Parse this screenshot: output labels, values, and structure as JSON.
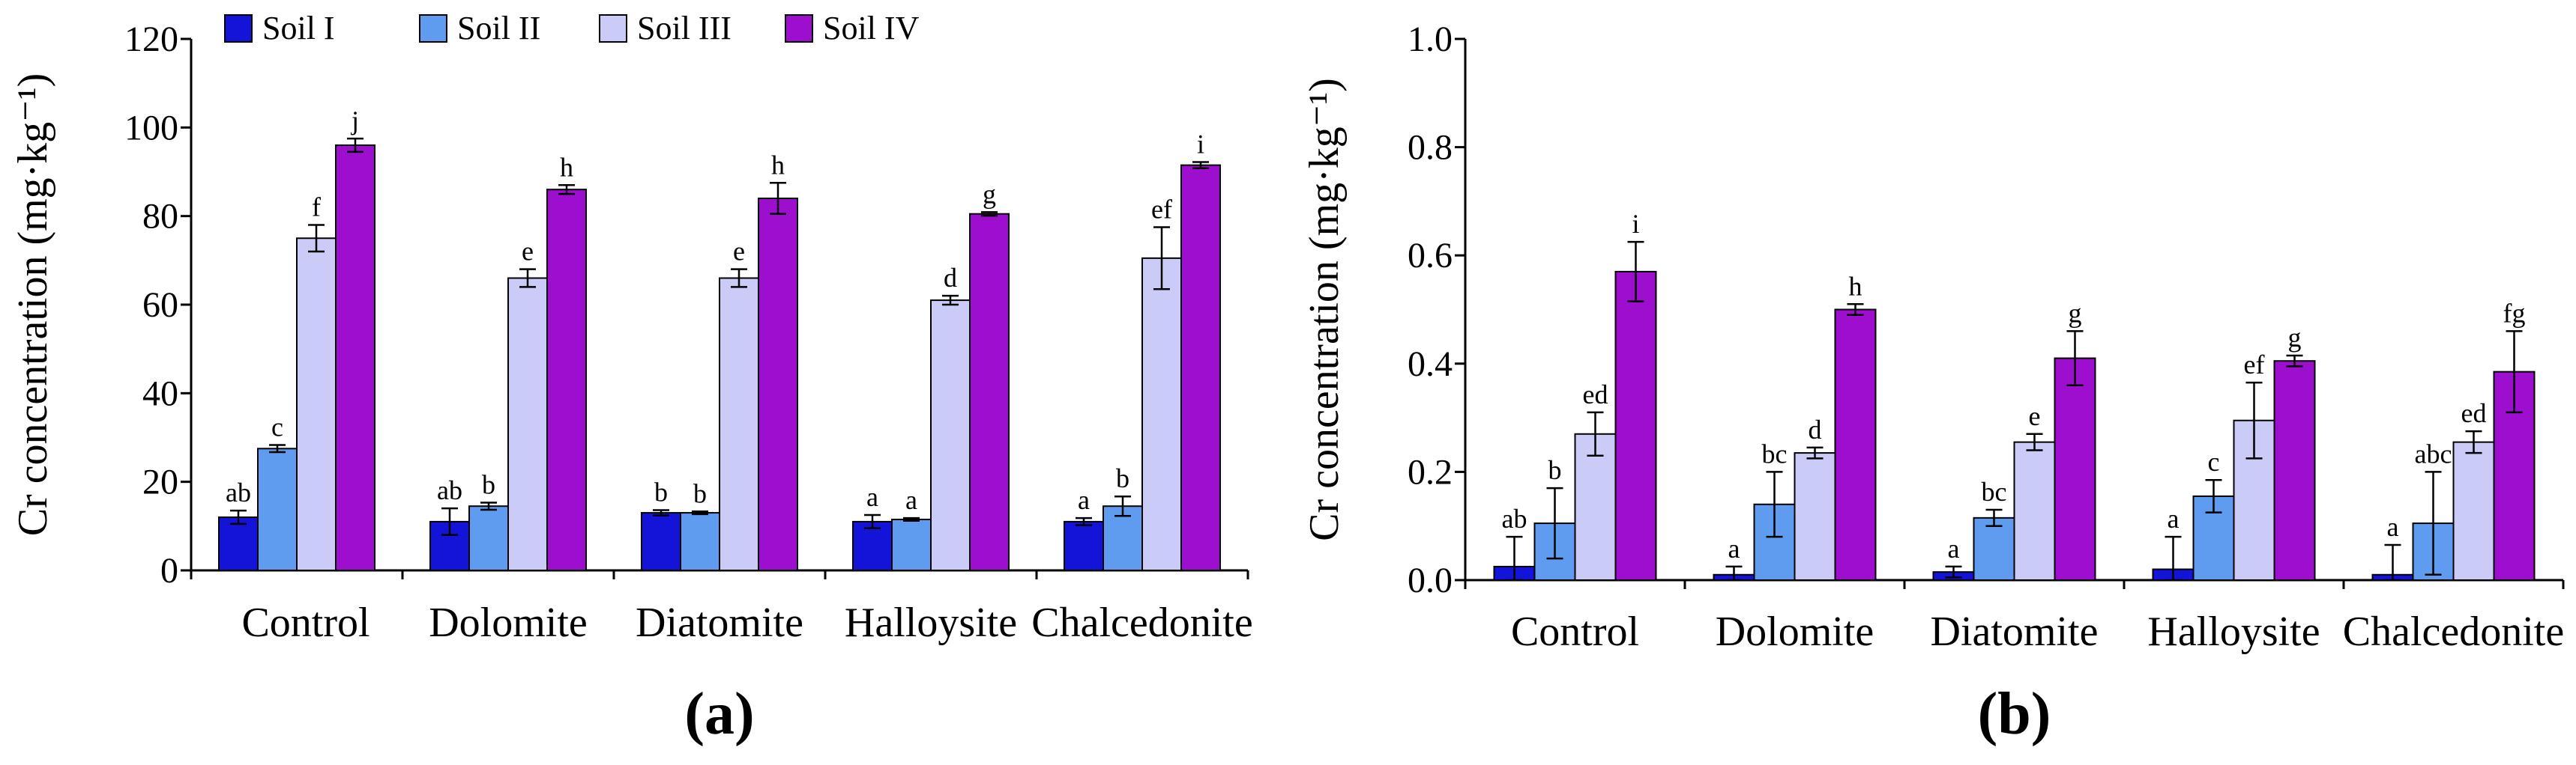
{
  "chart_data": [
    {
      "type": "bar",
      "panel_label": "(a)",
      "ylabel": "Cr concentration (mg·kg⁻¹)",
      "ylim": [
        0,
        120
      ],
      "yticks": [
        "0",
        "20",
        "40",
        "60",
        "80",
        "100",
        "120"
      ],
      "categories": [
        "Control",
        "Dolomite",
        "Diatomite",
        "Halloysite",
        "Chalcedonite"
      ],
      "legend_position": "top-left",
      "series": [
        {
          "name": "Soil I",
          "color": "#1414d8",
          "values": [
            12,
            11,
            13,
            11,
            11
          ],
          "errors": [
            1.5,
            3,
            0.6,
            1.5,
            0.8
          ],
          "labels": [
            "ab",
            "ab",
            "b",
            "a",
            "a"
          ]
        },
        {
          "name": "Soil II",
          "color": "#5f9cf0",
          "values": [
            27.5,
            14.5,
            13,
            11.5,
            14.5
          ],
          "errors": [
            0.8,
            0.8,
            0.3,
            0.3,
            2.2
          ],
          "labels": [
            "c",
            "b",
            "b",
            "a",
            "b"
          ]
        },
        {
          "name": "Soil III",
          "color": "#cacbf6",
          "values": [
            75,
            66,
            66,
            61,
            70.5
          ],
          "errors": [
            3,
            2,
            2,
            1,
            7
          ],
          "labels": [
            "f",
            "e",
            "e",
            "d",
            "ef"
          ]
        },
        {
          "name": "Soil IV",
          "color": "#9d0ecf",
          "values": [
            96,
            86,
            84,
            80.5,
            91.5
          ],
          "errors": [
            1.5,
            1,
            3.5,
            0.4,
            0.7
          ],
          "labels": [
            "j",
            "h",
            "h",
            "g",
            "i"
          ]
        }
      ]
    },
    {
      "type": "bar",
      "panel_label": "(b)",
      "ylabel": "Cr concentration (mg·kg⁻¹)",
      "ylim": [
        0,
        1.0
      ],
      "yticks": [
        "0.0",
        "0.2",
        "0.4",
        "0.6",
        "0.8",
        "1.0"
      ],
      "categories": [
        "Control",
        "Dolomite",
        "Diatomite",
        "Halloysite",
        "Chalcedonite"
      ],
      "series": [
        {
          "name": "Soil I",
          "color": "#1414d8",
          "values": [
            0.025,
            0.01,
            0.015,
            0.02,
            0.01
          ],
          "errors": [
            0.055,
            0.015,
            0.01,
            0.06,
            0.055
          ],
          "labels": [
            "ab",
            "a",
            "a",
            "a",
            "a"
          ]
        },
        {
          "name": "Soil II",
          "color": "#5f9cf0",
          "values": [
            0.105,
            0.14,
            0.115,
            0.155,
            0.105
          ],
          "errors": [
            0.065,
            0.06,
            0.015,
            0.03,
            0.095
          ],
          "labels": [
            "b",
            "bc",
            "bc",
            "c",
            "abc"
          ]
        },
        {
          "name": "Soil III",
          "color": "#cacbf6",
          "values": [
            0.27,
            0.235,
            0.255,
            0.295,
            0.255
          ],
          "errors": [
            0.04,
            0.01,
            0.015,
            0.07,
            0.02
          ],
          "labels": [
            "ed",
            "d",
            "e",
            "ef",
            "ed"
          ]
        },
        {
          "name": "Soil IV",
          "color": "#9d0ecf",
          "values": [
            0.57,
            0.5,
            0.41,
            0.405,
            0.385
          ],
          "errors": [
            0.055,
            0.01,
            0.05,
            0.01,
            0.075
          ],
          "labels": [
            "i",
            "h",
            "g",
            "g",
            "fg"
          ]
        }
      ]
    }
  ]
}
